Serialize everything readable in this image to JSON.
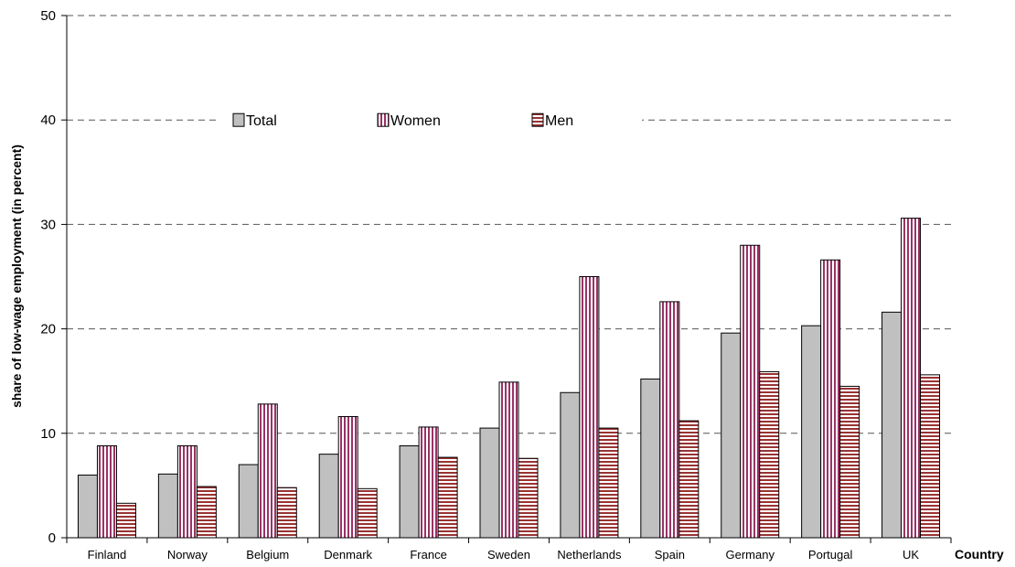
{
  "chart_data": {
    "type": "bar",
    "title": "",
    "xlabel": "Country",
    "ylabel": "share of low-wage employment (in percent)",
    "ylim": [
      0,
      50
    ],
    "yticks": [
      0,
      10,
      20,
      30,
      40,
      50
    ],
    "grid": true,
    "legend_position": "upper-center",
    "categories": [
      "Finland",
      "Norway",
      "Belgium",
      "Denmark",
      "France",
      "Sweden",
      "Netherlands",
      "Spain",
      "Germany",
      "Portugal",
      "UK"
    ],
    "series": [
      {
        "name": "Total",
        "values": [
          6.0,
          6.1,
          7.0,
          8.0,
          8.8,
          10.5,
          13.9,
          15.2,
          19.6,
          20.3,
          21.6
        ],
        "color": "#c0c0c0",
        "pattern": "solid"
      },
      {
        "name": "Women",
        "values": [
          8.8,
          8.8,
          12.8,
          11.6,
          10.6,
          14.9,
          25.0,
          22.6,
          28.0,
          26.6,
          30.6
        ],
        "color": "#993366",
        "pattern": "vertical-stripes"
      },
      {
        "name": "Men",
        "values": [
          3.3,
          4.9,
          4.8,
          4.7,
          7.7,
          7.6,
          10.5,
          11.2,
          15.9,
          14.5,
          15.6
        ],
        "color": "#993333",
        "pattern": "horizontal-stripes"
      }
    ]
  }
}
